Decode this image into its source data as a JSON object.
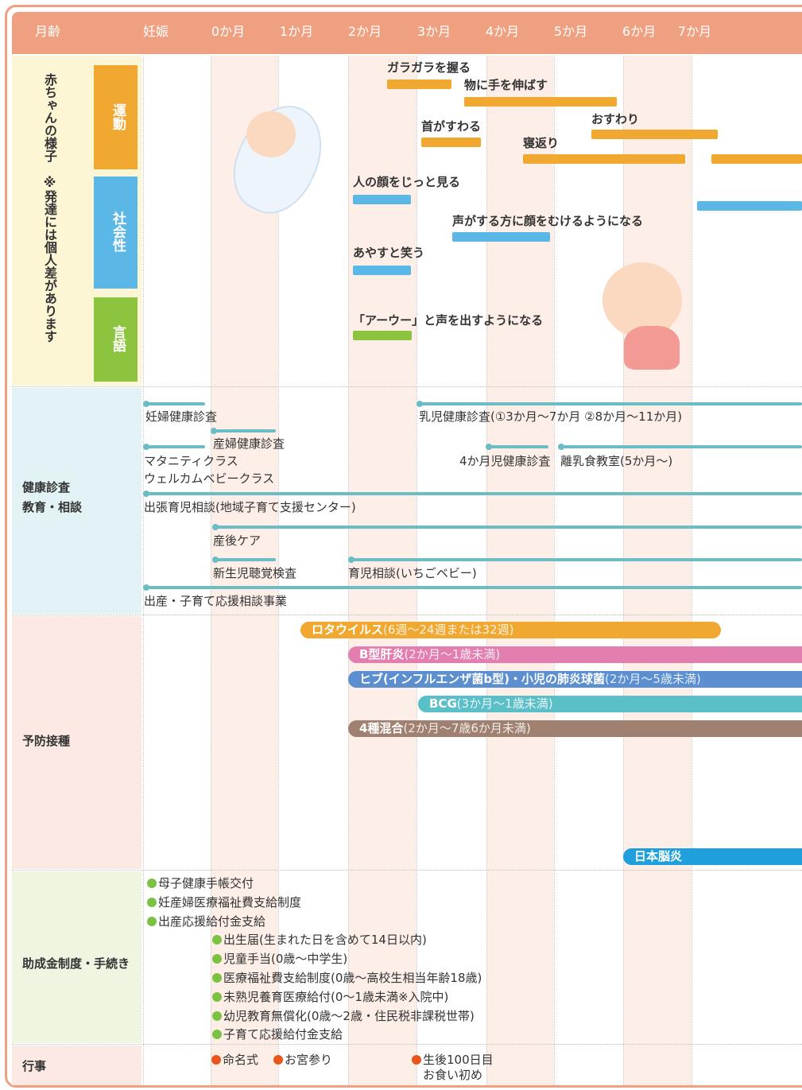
{
  "header": {
    "columns": [
      "月齢",
      "妊娠",
      "0か月",
      "1か月",
      "2か月",
      "3か月",
      "4か月",
      "5か月",
      "6か月",
      "7か月"
    ]
  },
  "development": {
    "title": "赤ちゃんの様子",
    "note": "※発達には個人差があります",
    "groups": [
      {
        "name": "運動",
        "items": [
          "ガラガラを握る",
          "物に手を伸ばす",
          "首がすわる",
          "おすわり",
          "寝返り"
        ]
      },
      {
        "name": "社会性",
        "items": [
          "人の顔をじっと見る",
          "声がする方に顔をむけるようになる",
          "あやすと笑う"
        ]
      },
      {
        "name": "言語",
        "items": [
          "「アーウー」と声を出すようになる"
        ]
      }
    ]
  },
  "health": {
    "label": [
      "健康診査",
      "教育・相談"
    ],
    "items": [
      "妊婦健康診査",
      "乳児健康診査(①3か月〜7か月 ②8か月〜11か月)",
      "産婦健康診査",
      "マタニティクラス",
      "ウェルカムベビークラス",
      "4か月児健康診査",
      "離乳食教室(5か月〜)",
      "出張育児相談(地域子育て支援センター)",
      "産後ケア",
      "新生児聴覚検査",
      "育児相談(いちごベビー)",
      "出産・子育て応援相談事業"
    ]
  },
  "vaccination": {
    "label": "予防接種",
    "items": [
      {
        "name": "ロタウイルス",
        "note": "(6週〜24週または32週)"
      },
      {
        "name": "B型肝炎",
        "note": "(2か月〜1歳未満)"
      },
      {
        "name": "ヒブ(インフルエンザ菌b型)・小児の肺炎球菌",
        "note": "(2か月〜5歳未満)"
      },
      {
        "name": "BCG",
        "note": "(3か月〜1歳未満)"
      },
      {
        "name": "4種混合",
        "note": "(2か月〜7歳6か月未満)"
      },
      {
        "name": "日本脳炎"
      }
    ]
  },
  "subsidies": {
    "label": "助成金制度・手続き",
    "items": [
      "母子健康手帳交付",
      "妊産婦医療福祉費支給制度",
      "出産応援給付金支給",
      "出生届(生まれた日を含めて14日以内)",
      "児童手当(0歳〜中学生)",
      "医療福祉費支給制度(0歳〜高校生相当年齢18歳)",
      "未熟児養育医療給付(0〜1歳未満※入院中)",
      "幼児教育無償化(0歳〜2歳・住民税非課税世帯)",
      "子育て応援給付金支給"
    ]
  },
  "events": {
    "label": "行事",
    "items": [
      "命名式",
      "お宮参り",
      "生後100日目",
      "お食い初め"
    ]
  }
}
